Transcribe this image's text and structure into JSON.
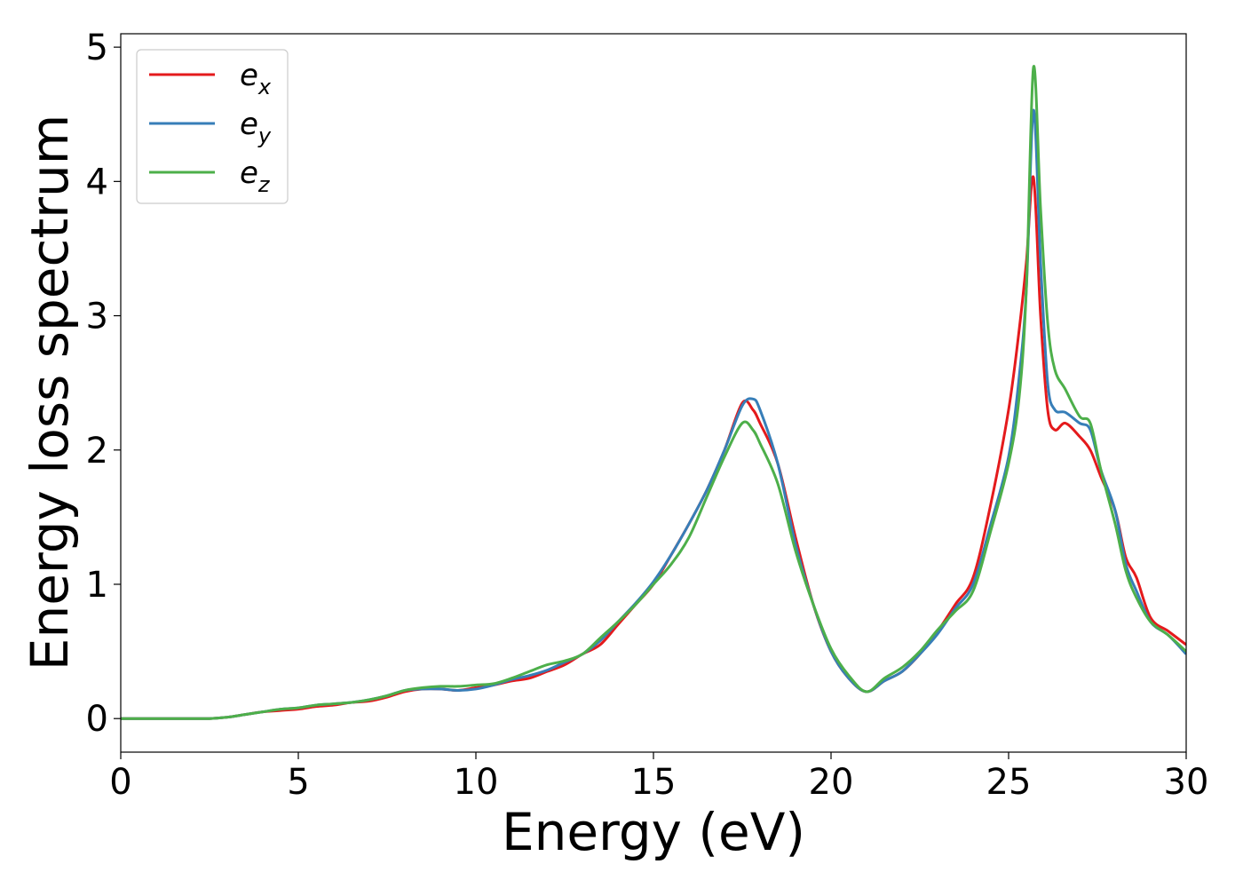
{
  "chart_data": {
    "type": "line",
    "xlabel": "Energy (eV)",
    "ylabel": "Energy loss spectrum",
    "xlim": [
      0,
      30
    ],
    "ylim": [
      -0.25,
      5.1
    ],
    "xticks": [
      "0",
      "5",
      "10",
      "15",
      "20",
      "25",
      "30"
    ],
    "yticks": [
      "0",
      "1",
      "2",
      "3",
      "4",
      "5"
    ],
    "grid": false,
    "legend_position": "top-left",
    "x": [
      0,
      1,
      2,
      2.5,
      3,
      3.5,
      4,
      4.5,
      5,
      5.5,
      6,
      6.5,
      7,
      7.5,
      8,
      8.5,
      9,
      9.5,
      10,
      10.5,
      11,
      11.5,
      12,
      12.5,
      13,
      13.5,
      14,
      14.5,
      15,
      15.5,
      16,
      16.5,
      17,
      17.5,
      17.8,
      18,
      18.5,
      19,
      19.5,
      20,
      20.5,
      21,
      21.5,
      22,
      22.5,
      23,
      23.5,
      24,
      24.5,
      25,
      25.3,
      25.5,
      25.7,
      25.9,
      26.1,
      26.3,
      26.6,
      27,
      27.3,
      27.6,
      28,
      28.3,
      28.6,
      29,
      29.5,
      30
    ],
    "series": [
      {
        "name": "e",
        "subscript": "x",
        "color": "#e41a1c",
        "values": [
          0,
          0,
          0,
          0,
          0.01,
          0.03,
          0.05,
          0.06,
          0.07,
          0.09,
          0.1,
          0.12,
          0.13,
          0.16,
          0.2,
          0.22,
          0.22,
          0.21,
          0.23,
          0.25,
          0.28,
          0.3,
          0.35,
          0.4,
          0.48,
          0.55,
          0.7,
          0.85,
          1.0,
          1.22,
          1.45,
          1.7,
          2.0,
          2.35,
          2.3,
          2.2,
          1.9,
          1.35,
          0.85,
          0.5,
          0.3,
          0.2,
          0.28,
          0.35,
          0.48,
          0.65,
          0.85,
          1.05,
          1.6,
          2.3,
          2.9,
          3.4,
          4.03,
          3.0,
          2.3,
          2.15,
          2.2,
          2.1,
          2.0,
          1.8,
          1.55,
          1.2,
          1.05,
          0.75,
          0.65,
          0.55
        ]
      },
      {
        "name": "e",
        "subscript": "y",
        "color": "#377eb8",
        "values": [
          0,
          0,
          0,
          0,
          0.01,
          0.03,
          0.05,
          0.07,
          0.08,
          0.1,
          0.11,
          0.12,
          0.14,
          0.17,
          0.21,
          0.22,
          0.22,
          0.21,
          0.22,
          0.25,
          0.29,
          0.32,
          0.36,
          0.42,
          0.48,
          0.58,
          0.72,
          0.86,
          1.02,
          1.22,
          1.45,
          1.7,
          2.0,
          2.33,
          2.38,
          2.3,
          1.9,
          1.3,
          0.85,
          0.5,
          0.3,
          0.2,
          0.28,
          0.35,
          0.48,
          0.63,
          0.82,
          1.0,
          1.45,
          1.95,
          2.55,
          3.2,
          4.53,
          3.4,
          2.5,
          2.3,
          2.28,
          2.2,
          2.15,
          1.85,
          1.55,
          1.15,
          0.95,
          0.72,
          0.62,
          0.48
        ]
      },
      {
        "name": "e",
        "subscript": "z",
        "color": "#4daf4a",
        "values": [
          0,
          0,
          0,
          0,
          0.01,
          0.03,
          0.05,
          0.07,
          0.08,
          0.1,
          0.11,
          0.12,
          0.14,
          0.17,
          0.21,
          0.23,
          0.24,
          0.24,
          0.25,
          0.26,
          0.3,
          0.35,
          0.4,
          0.43,
          0.48,
          0.6,
          0.72,
          0.85,
          1.0,
          1.15,
          1.35,
          1.65,
          1.95,
          2.2,
          2.15,
          2.05,
          1.75,
          1.25,
          0.85,
          0.52,
          0.32,
          0.2,
          0.3,
          0.38,
          0.5,
          0.66,
          0.8,
          0.95,
          1.4,
          1.9,
          2.4,
          3.2,
          4.85,
          3.8,
          2.95,
          2.6,
          2.45,
          2.25,
          2.2,
          1.85,
          1.45,
          1.1,
          0.9,
          0.72,
          0.62,
          0.5
        ]
      }
    ]
  }
}
